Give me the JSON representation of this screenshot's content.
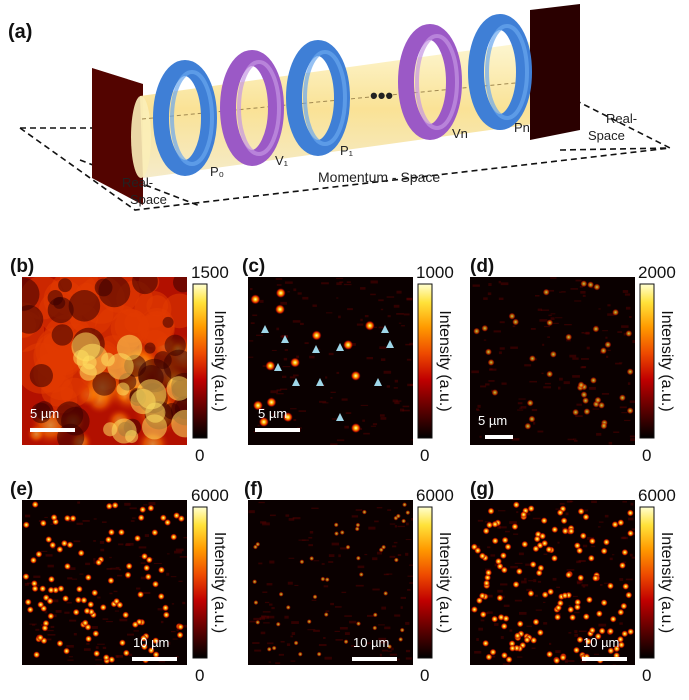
{
  "panel_a": {
    "label": "(a)",
    "labels": {
      "real_space_left": [
        "Real-",
        "Space"
      ],
      "real_space_right": [
        "Real-",
        "Space"
      ],
      "momentum_space": "Momentum - Space",
      "p0": "P₀",
      "v1": "V₁",
      "p1": "P₁",
      "vn": "Vn",
      "pn": "Pn",
      "ellipsis": "•••"
    },
    "colors": {
      "blue_ring": "#3f7fd6",
      "purple_ring": "#9b59c6",
      "cylinder": "#f9e39a",
      "screen_dark": "#3a0000"
    }
  },
  "maps": [
    {
      "label": "(b)",
      "vmax": "1500",
      "vmin": "0",
      "cbar_title": "Intensity (a.u.)",
      "scale": "5 µm",
      "style": "speckle-bright",
      "markers": false
    },
    {
      "label": "(c)",
      "vmax": "1000",
      "vmin": "0",
      "cbar_title": "Intensity (a.u.)",
      "scale": "5 µm",
      "style": "sparse-spots",
      "markers": true
    },
    {
      "label": "(d)",
      "vmax": "2000",
      "vmin": "0",
      "cbar_title": "Intensity (a.u.)",
      "scale": "5 µm",
      "style": "faint-spots",
      "markers": false
    },
    {
      "label": "(e)",
      "vmax": "6000",
      "vmin": "0",
      "cbar_title": "Intensity (a.u.)",
      "scale": "10 µm",
      "style": "many-spots",
      "markers": false
    },
    {
      "label": "(f)",
      "vmax": "6000",
      "vmin": "0",
      "cbar_title": "Intensity (a.u.)",
      "scale": "10 µm",
      "style": "dim-spots",
      "markers": false
    },
    {
      "label": "(g)",
      "vmax": "6000",
      "vmin": "0",
      "cbar_title": "Intensity (a.u.)",
      "scale": "10 µm",
      "style": "dense-spots",
      "markers": false
    }
  ],
  "colormap": [
    "#000000",
    "#5a0000",
    "#b00000",
    "#e83a00",
    "#ff8a00",
    "#ffd21a",
    "#ffffc0"
  ]
}
